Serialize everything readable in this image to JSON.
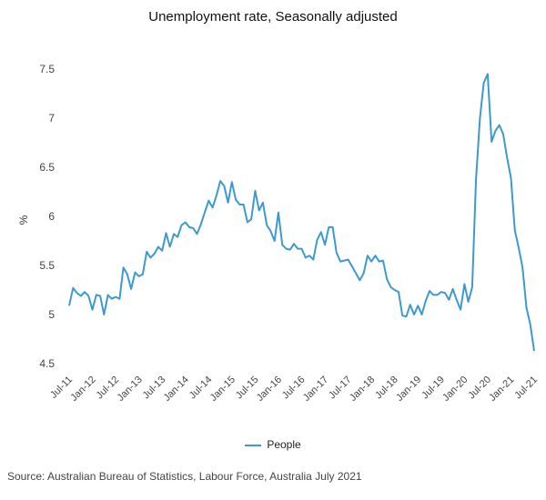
{
  "chart_data": {
    "type": "line",
    "title": "Unemployment rate, Seasonally adjusted",
    "xlabel": "",
    "ylabel": "%",
    "ylim": [
      4.5,
      7.5
    ],
    "yticks": [
      "4.5",
      "5",
      "5.5",
      "6",
      "6.5",
      "7",
      "7.5"
    ],
    "grid": false,
    "legend_position": "bottom",
    "line_color": "#3d9ad1",
    "x_tick_labels": [
      "Jul-11",
      "Jan-12",
      "Jul-12",
      "Jan-13",
      "Jul-13",
      "Jan-14",
      "Jul-14",
      "Jan-15",
      "Jul-15",
      "Jan-16",
      "Jul-16",
      "Jan-17",
      "Jul-17",
      "Jan-18",
      "Jul-18",
      "Jan-19",
      "Jul-19",
      "Jan-20",
      "Jul-20",
      "Jan-21",
      "Jul-21"
    ],
    "x_start": "Jul-11",
    "x_end": "Jul-21",
    "series": [
      {
        "name": "People",
        "values": [
          5.09,
          5.27,
          5.22,
          5.19,
          5.23,
          5.19,
          5.05,
          5.2,
          5.19,
          5.0,
          5.2,
          5.16,
          5.18,
          5.16,
          5.48,
          5.41,
          5.26,
          5.43,
          5.39,
          5.41,
          5.64,
          5.58,
          5.62,
          5.69,
          5.65,
          5.83,
          5.69,
          5.82,
          5.79,
          5.91,
          5.94,
          5.89,
          5.88,
          5.82,
          5.92,
          6.04,
          6.16,
          6.09,
          6.21,
          6.36,
          6.31,
          6.14,
          6.35,
          6.17,
          6.12,
          6.12,
          5.94,
          5.97,
          6.26,
          6.06,
          6.14,
          5.91,
          5.85,
          5.75,
          6.04,
          5.71,
          5.67,
          5.66,
          5.72,
          5.67,
          5.67,
          5.58,
          5.6,
          5.56,
          5.76,
          5.84,
          5.71,
          5.89,
          5.89,
          5.63,
          5.54,
          5.55,
          5.56,
          5.49,
          5.42,
          5.35,
          5.42,
          5.6,
          5.54,
          5.6,
          5.54,
          5.55,
          5.36,
          5.28,
          5.25,
          5.23,
          4.99,
          4.98,
          5.1,
          5.0,
          5.09,
          5.0,
          5.14,
          5.24,
          5.2,
          5.2,
          5.23,
          5.22,
          5.15,
          5.26,
          5.15,
          5.05,
          5.31,
          5.13,
          5.28,
          6.38,
          7.0,
          7.36,
          7.45,
          6.76,
          6.87,
          6.93,
          6.84,
          6.6,
          6.39,
          5.86,
          5.68,
          5.48,
          5.07,
          4.9,
          4.63
        ]
      }
    ]
  },
  "legend": {
    "label": "People"
  },
  "source": "Source: Australian Bureau of Statistics, Labour Force, Australia July 2021"
}
